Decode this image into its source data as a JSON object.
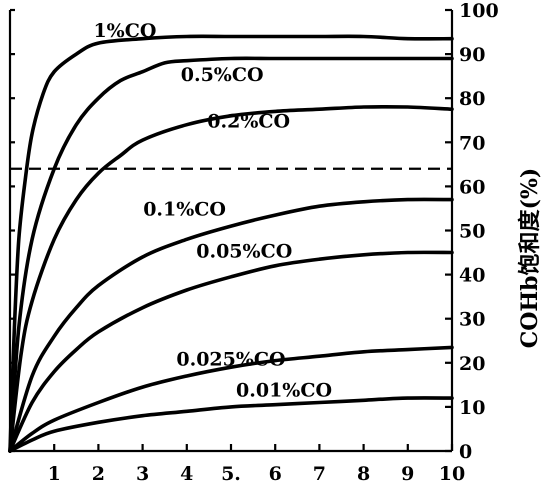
{
  "chart_data": {
    "type": "line",
    "title": "",
    "xlabel": "",
    "ylabel": "COHb饱和度(%)",
    "xlim": [
      0,
      10
    ],
    "ylim": [
      0,
      100
    ],
    "xticks": [
      "1",
      "2",
      "3",
      "4",
      "5.",
      "6",
      "7",
      "8",
      "9",
      "10"
    ],
    "yticks": [
      "0",
      "10",
      "20",
      "30",
      "40",
      "50",
      "60",
      "70",
      "80",
      "90",
      "100"
    ],
    "reference_line": {
      "y": 64,
      "style": "dashed"
    },
    "grid": false,
    "series": [
      {
        "name": "1%CO",
        "label_x": 2.6,
        "label_y": 95.5,
        "points": [
          [
            0,
            0
          ],
          [
            0.1,
            28
          ],
          [
            0.2,
            48
          ],
          [
            0.35,
            62
          ],
          [
            0.5,
            72
          ],
          [
            0.75,
            81
          ],
          [
            1,
            86
          ],
          [
            1.5,
            90
          ],
          [
            2,
            92.5
          ],
          [
            3,
            93.5
          ],
          [
            4,
            94
          ],
          [
            5,
            94
          ],
          [
            6,
            94
          ],
          [
            7,
            94
          ],
          [
            8,
            94
          ],
          [
            9,
            93.5
          ],
          [
            10,
            93.5
          ]
        ]
      },
      {
        "name": "0.5%CO",
        "label_x": 4.8,
        "label_y": 85.5,
        "points": [
          [
            0,
            0
          ],
          [
            0.2,
            28
          ],
          [
            0.5,
            48
          ],
          [
            1,
            64
          ],
          [
            1.5,
            74
          ],
          [
            2,
            80
          ],
          [
            2.5,
            84
          ],
          [
            3,
            86
          ],
          [
            3.5,
            88
          ],
          [
            4,
            88.5
          ],
          [
            5,
            89
          ],
          [
            6,
            89
          ],
          [
            7,
            89
          ],
          [
            8,
            89
          ],
          [
            9,
            89
          ],
          [
            10,
            89
          ]
        ]
      },
      {
        "name": "0.2%CO",
        "label_x": 5.4,
        "label_y": 75,
        "points": [
          [
            0,
            0
          ],
          [
            0.25,
            22
          ],
          [
            0.5,
            34
          ],
          [
            1,
            48
          ],
          [
            1.5,
            57
          ],
          [
            2,
            63
          ],
          [
            2.5,
            67
          ],
          [
            3,
            70.5
          ],
          [
            4,
            74
          ],
          [
            5,
            76
          ],
          [
            6,
            77
          ],
          [
            7,
            77.5
          ],
          [
            8,
            78
          ],
          [
            9,
            78
          ],
          [
            10,
            77.5
          ]
        ]
      },
      {
        "name": "0.1%CO",
        "label_x": 3.95,
        "label_y": 55,
        "points": [
          [
            0,
            0
          ],
          [
            0.5,
            17
          ],
          [
            1,
            26
          ],
          [
            1.5,
            32.5
          ],
          [
            2,
            37.5
          ],
          [
            3,
            44
          ],
          [
            4,
            48
          ],
          [
            5,
            51
          ],
          [
            6,
            53.5
          ],
          [
            7,
            55.5
          ],
          [
            8,
            56.5
          ],
          [
            9,
            57
          ],
          [
            10,
            57
          ]
        ]
      },
      {
        "name": "0.05%CO",
        "label_x": 5.3,
        "label_y": 45.5,
        "points": [
          [
            0,
            0
          ],
          [
            0.5,
            11
          ],
          [
            1,
            18
          ],
          [
            1.5,
            23
          ],
          [
            2,
            27
          ],
          [
            3,
            32.5
          ],
          [
            4,
            36.5
          ],
          [
            5,
            39.5
          ],
          [
            6,
            42
          ],
          [
            7,
            43.5
          ],
          [
            8,
            44.5
          ],
          [
            9,
            45
          ],
          [
            10,
            45
          ]
        ]
      },
      {
        "name": "0.025%CO",
        "label_x": 5.0,
        "label_y": 21,
        "points": [
          [
            0,
            0
          ],
          [
            0.5,
            4
          ],
          [
            1,
            7
          ],
          [
            2,
            11
          ],
          [
            3,
            14.5
          ],
          [
            4,
            17
          ],
          [
            5,
            19
          ],
          [
            6,
            20.5
          ],
          [
            7,
            21.5
          ],
          [
            8,
            22.5
          ],
          [
            9,
            23
          ],
          [
            10,
            23.5
          ]
        ]
      },
      {
        "name": "0.01%CO",
        "label_x": 6.2,
        "label_y": 14,
        "points": [
          [
            0,
            0
          ],
          [
            0.5,
            2.5
          ],
          [
            1,
            4.5
          ],
          [
            2,
            6.5
          ],
          [
            3,
            8
          ],
          [
            4,
            9
          ],
          [
            5,
            10
          ],
          [
            6,
            10.5
          ],
          [
            7,
            11
          ],
          [
            8,
            11.5
          ],
          [
            9,
            12
          ],
          [
            10,
            12
          ]
        ]
      }
    ]
  }
}
